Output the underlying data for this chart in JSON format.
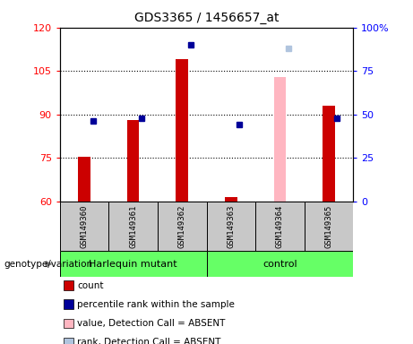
{
  "title": "GDS3365 / 1456657_at",
  "samples": [
    "GSM149360",
    "GSM149361",
    "GSM149362",
    "GSM149363",
    "GSM149364",
    "GSM149365"
  ],
  "ylim_left": [
    60,
    120
  ],
  "ylim_right": [
    0,
    100
  ],
  "yticks_left": [
    60,
    75,
    90,
    105,
    120
  ],
  "yticks_right": [
    0,
    25,
    50,
    75,
    100
  ],
  "count_values": [
    75.5,
    88.0,
    109.0,
    61.5,
    null,
    93.0
  ],
  "rank_values": [
    46,
    48,
    90,
    44,
    null,
    48
  ],
  "absent_count_values": [
    null,
    null,
    null,
    null,
    103.0,
    null
  ],
  "absent_rank_values": [
    null,
    null,
    null,
    null,
    88.0,
    null
  ],
  "count_color": "#CC0000",
  "rank_color": "#000099",
  "absent_count_color": "#FFB6C1",
  "absent_rank_color": "#B0C4DE",
  "bar_width": 0.25,
  "baseline": 60,
  "group1_label": "Harlequin mutant",
  "group2_label": "control",
  "group_color": "#66FF66",
  "gray_color": "#C8C8C8",
  "legend_items": [
    [
      "#CC0000",
      "count"
    ],
    [
      "#000099",
      "percentile rank within the sample"
    ],
    [
      "#FFB6C1",
      "value, Detection Call = ABSENT"
    ],
    [
      "#B0C4DE",
      "rank, Detection Call = ABSENT"
    ]
  ]
}
